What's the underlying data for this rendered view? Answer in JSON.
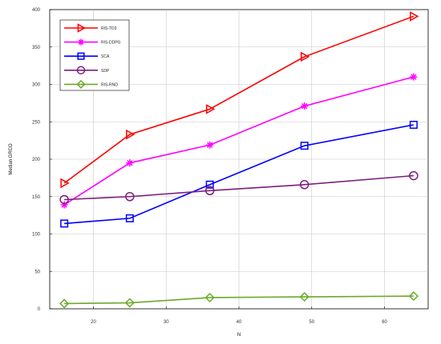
{
  "chart_data": {
    "type": "line",
    "title": "",
    "xlabel": "N",
    "ylabel": "Median GRCO",
    "xlim": [
      14,
      66
    ],
    "ylim": [
      0,
      400
    ],
    "xticks": [
      20,
      30,
      40,
      50,
      60
    ],
    "yticks": [
      0,
      50,
      100,
      150,
      200,
      250,
      300,
      350,
      400
    ],
    "grid": true,
    "legend_position": "top-left",
    "x": [
      16,
      25,
      36,
      49,
      64
    ],
    "series": [
      {
        "name": "RIS-TD3",
        "color": "#ff0000",
        "marker": "triangle-right",
        "values": [
          168,
          233,
          267,
          337,
          391
        ]
      },
      {
        "name": "RIS-DDPG",
        "color": "#ff00ff",
        "marker": "asterisk",
        "values": [
          139,
          195,
          219,
          271,
          310
        ]
      },
      {
        "name": "SCA",
        "color": "#0000ff",
        "marker": "square",
        "values": [
          114,
          121,
          166,
          218,
          246
        ]
      },
      {
        "name": "SDP",
        "color": "#7b1f7b",
        "marker": "circle",
        "values": [
          146,
          150,
          158,
          166,
          178
        ]
      },
      {
        "name": "RIS-RND",
        "color": "#6aaa2a",
        "marker": "diamond",
        "values": [
          7,
          8,
          15,
          16,
          17
        ]
      }
    ]
  }
}
